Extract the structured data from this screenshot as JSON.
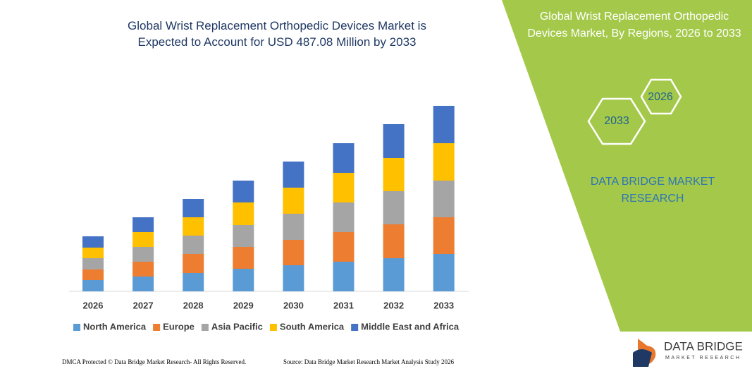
{
  "chart_data": {
    "type": "stacked-bar",
    "title": "Global Wrist Replacement Orthopedic Devices Market is Expected to Account for USD 487.08 Million by 2033",
    "categories": [
      "2026",
      "2027",
      "2028",
      "2029",
      "2030",
      "2031",
      "2032",
      "2033"
    ],
    "series": [
      {
        "name": "North America",
        "color": "#5b9bd5",
        "values": [
          16,
          21,
          26,
          32,
          37,
          42,
          47,
          53
        ]
      },
      {
        "name": "Europe",
        "color": "#ed7d31",
        "values": [
          15,
          21,
          27,
          31,
          36,
          42,
          48,
          52
        ]
      },
      {
        "name": "Asia Pacific",
        "color": "#a5a5a5",
        "values": [
          16,
          21,
          26,
          31,
          37,
          42,
          47,
          52
        ]
      },
      {
        "name": "South America",
        "color": "#ffc000",
        "values": [
          15,
          21,
          26,
          32,
          37,
          42,
          47,
          53
        ]
      },
      {
        "name": "Middle East and Africa",
        "color": "#4472c4",
        "values": [
          16,
          21,
          26,
          31,
          37,
          42,
          48,
          53
        ]
      }
    ]
  },
  "panel": {
    "title": "Global Wrist Replacement Orthopedic Devices Market, By Regions, 2026 to 2033",
    "hex_back": "2026",
    "hex_front": "2033",
    "brand": "DATA BRIDGE MARKET RESEARCH"
  },
  "footer": {
    "dmca": "DMCA Protected © Data Bridge Market Research- All Rights Reserved.",
    "source": "Source: Data Bridge Market Research Market Analysis Study 2026"
  },
  "logo": {
    "name": "DATA BRIDGE",
    "tagline": "MARKET RESEARCH"
  }
}
